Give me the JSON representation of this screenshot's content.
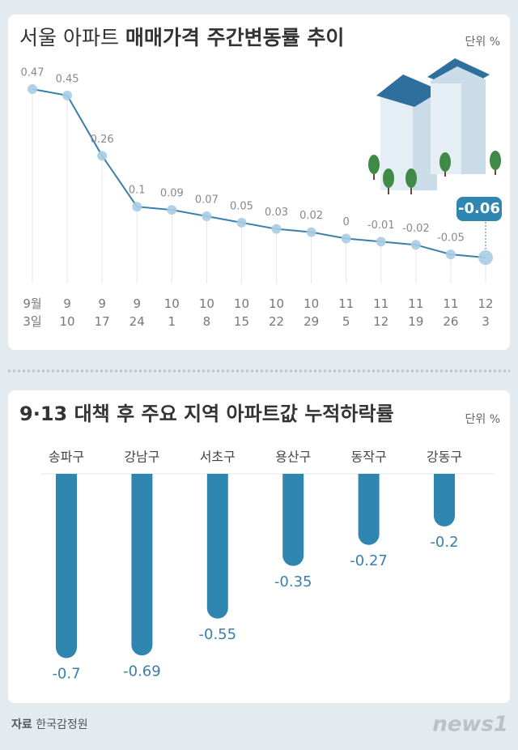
{
  "chart_data": [
    {
      "type": "line",
      "title": [
        "서울 아파트",
        "매매가격 주간변동률 추이"
      ],
      "unit": "단위 %",
      "categories": [
        "9월\n3일",
        "9\n10",
        "9\n17",
        "9\n24",
        "10\n1",
        "10\n8",
        "10\n15",
        "10\n22",
        "10\n29",
        "11\n5",
        "11\n12",
        "11\n19",
        "11\n26",
        "12\n3"
      ],
      "values": [
        0.47,
        0.45,
        0.26,
        0.1,
        0.09,
        0.07,
        0.05,
        0.03,
        0.02,
        0,
        -0.01,
        -0.02,
        -0.05,
        -0.06
      ],
      "color": "#3a7fab",
      "highlight_index": 13
    },
    {
      "type": "bar",
      "title": "9·13 대책 후 주요 지역 아파트값 누적하락률",
      "unit": "단위 %",
      "categories": [
        "송파구",
        "강남구",
        "서초구",
        "용산구",
        "동작구",
        "강동구"
      ],
      "values": [
        -0.7,
        -0.69,
        -0.55,
        -0.35,
        -0.27,
        -0.2
      ],
      "color": "#2f86b1"
    }
  ],
  "source": {
    "label": "자료",
    "name": "한국감정원"
  },
  "logo": "news1"
}
